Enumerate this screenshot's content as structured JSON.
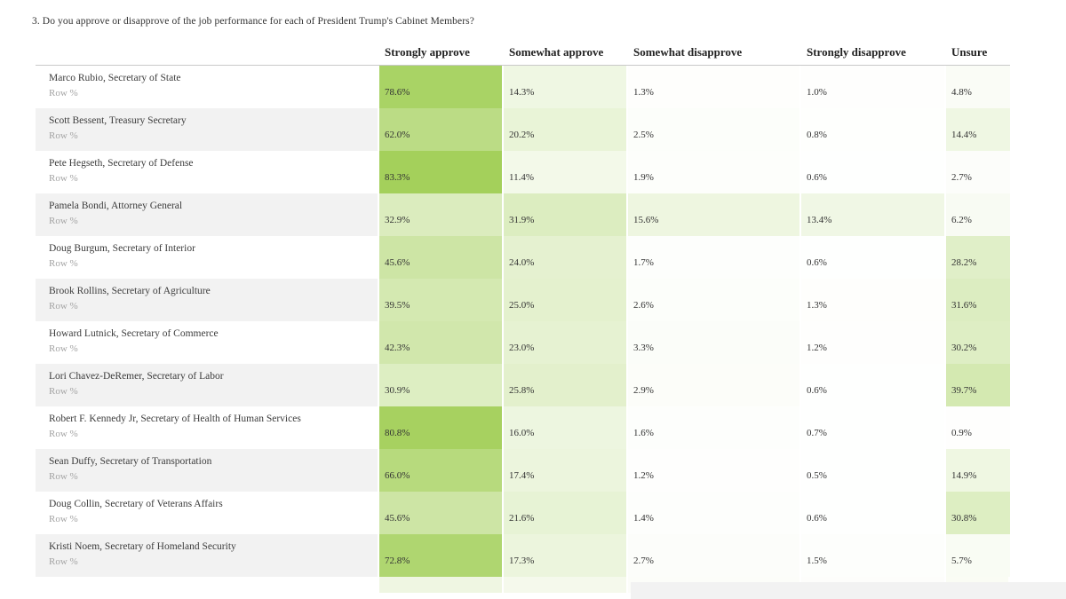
{
  "page": {
    "title": "3. Do you approve or disapprove of the job performance for each of President Trump's Cabinet Members?",
    "background": "#ffffff",
    "bottom_artifacts": {
      "partial_row_colors": [
        "#ffffff",
        "#eff6e2",
        "#f5f9ec",
        "#fcfdf9",
        "#fdfdfb",
        "#fafcf4"
      ],
      "gray_block_color": "#f2f2f2"
    }
  },
  "chart_data": {
    "type": "heatmap",
    "title": "3. Do you approve or disapprove of the job performance for each of President Trump's Cabinet Members?",
    "columns": [
      "Strongly approve",
      "Somewhat approve",
      "Somewhat disapprove",
      "Strongly disapprove",
      "Unsure"
    ],
    "row_sublabel": "Row %",
    "value_unit": "%",
    "rows": [
      {
        "label": "Marco Rubio, Secretary of State",
        "values": [
          78.6,
          14.3,
          1.3,
          1.0,
          4.8
        ]
      },
      {
        "label": "Scott Bessent, Treasury Secretary",
        "values": [
          62.0,
          20.2,
          2.5,
          0.8,
          14.4
        ]
      },
      {
        "label": "Pete Hegseth, Secretary of Defense",
        "values": [
          83.3,
          11.4,
          1.9,
          0.6,
          2.7
        ]
      },
      {
        "label": "Pamela Bondi, Attorney General",
        "values": [
          32.9,
          31.9,
          15.6,
          13.4,
          6.2
        ]
      },
      {
        "label": "Doug Burgum, Secretary of Interior",
        "values": [
          45.6,
          24.0,
          1.7,
          0.6,
          28.2
        ]
      },
      {
        "label": "Brook Rollins, Secretary of Agriculture",
        "values": [
          39.5,
          25.0,
          2.6,
          1.3,
          31.6
        ]
      },
      {
        "label": "Howard Lutnick, Secretary of Commerce",
        "values": [
          42.3,
          23.0,
          3.3,
          1.2,
          30.2
        ]
      },
      {
        "label": "Lori Chavez-DeRemer, Secretary of Labor",
        "values": [
          30.9,
          25.8,
          2.9,
          0.6,
          39.7
        ]
      },
      {
        "label": "Robert F. Kennedy Jr, Secretary of Health of Human Services",
        "values": [
          80.8,
          16.0,
          1.6,
          0.7,
          0.9
        ]
      },
      {
        "label": "Sean Duffy, Secretary of Transportation",
        "values": [
          66.0,
          17.4,
          1.2,
          0.5,
          14.9
        ]
      },
      {
        "label": "Doug Collin, Secretary of Veterans Affairs",
        "values": [
          45.6,
          21.6,
          1.4,
          0.6,
          30.8
        ]
      },
      {
        "label": "Kristi Noem, Secretary of Homeland Security",
        "values": [
          72.8,
          17.3,
          2.7,
          1.5,
          5.7
        ]
      }
    ],
    "color_scale": {
      "min_color": "#ffffff",
      "max_color": "#a2cf58",
      "domain": [
        0,
        85
      ]
    },
    "stripe_color": "#f2f2f2",
    "grid": false,
    "legend_position": "none"
  }
}
